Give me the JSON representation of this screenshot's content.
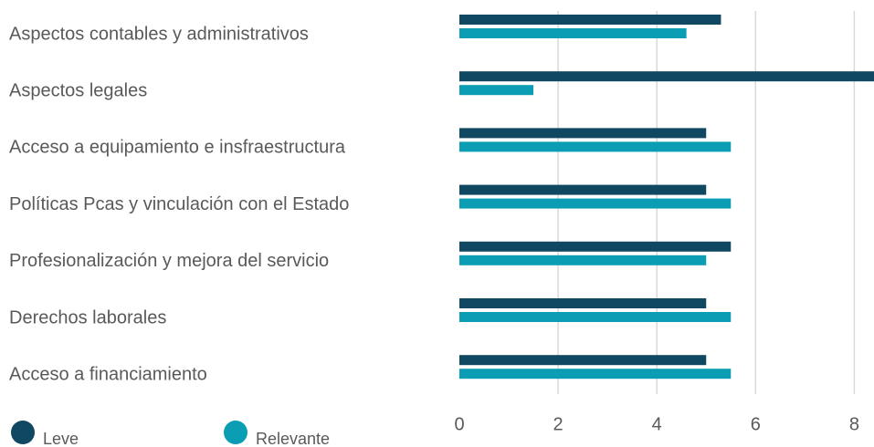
{
  "chart_data": {
    "type": "bar",
    "orientation": "horizontal",
    "categories": [
      "Aspectos contables y administrativos",
      "Aspectos legales",
      "Acceso a equipamiento e insfraestructura",
      "Políticas Pcas y vinculación con el Estado",
      "Profesionalización y mejora del servicio",
      "Derechos laborales",
      "Acceso a financiamiento"
    ],
    "series": [
      {
        "name": "Leve",
        "color": "#0f4860",
        "values": [
          5.3,
          8.4,
          5.0,
          5.0,
          5.5,
          5.0,
          5.0
        ]
      },
      {
        "name": "Relevante",
        "color": "#0b9db4",
        "values": [
          4.6,
          1.5,
          5.5,
          5.5,
          5.0,
          5.5,
          5.5
        ]
      }
    ],
    "xlim": [
      0,
      8.4
    ],
    "xticks": [
      0,
      2,
      4,
      6,
      8
    ],
    "grid": true,
    "legend": "bottom-left"
  }
}
